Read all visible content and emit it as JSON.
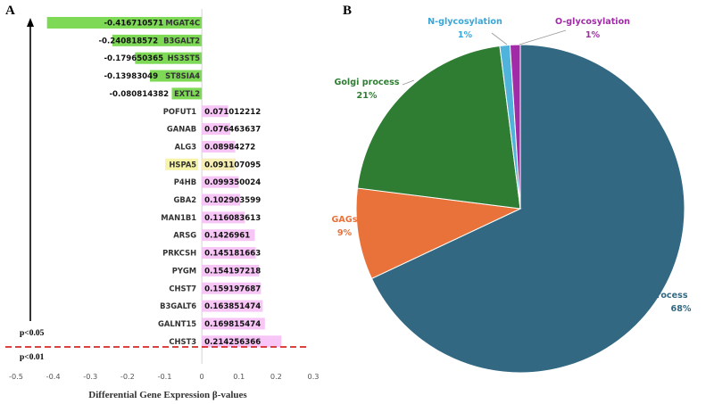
{
  "panel_a_label": "A",
  "panel_b_label": "B",
  "chart_data": [
    {
      "type": "bar",
      "orientation": "horizontal",
      "xlabel": "Differential Gene Expression β-values",
      "xlim": [
        -0.5,
        0.3
      ],
      "ticks": [
        "-0.5",
        "-0.4",
        "-0.3",
        "-0.2",
        "-0.1",
        "0",
        "0.1",
        "0.2",
        "0.3"
      ],
      "tick_values": [
        -0.5,
        -0.4,
        -0.3,
        -0.2,
        -0.1,
        0,
        0.1,
        0.2,
        0.3
      ],
      "p_labels": {
        "upper": "p<0.05",
        "lower": "p<0.01"
      },
      "colors": {
        "negative": "#7ed957",
        "positive": "#f7c6f7",
        "highlight": "#f7f4a8",
        "threshold": "#d62728"
      },
      "bars": [
        {
          "gene": "MGAT4C",
          "value": -0.416710571,
          "label": "-0.416710571",
          "highlight": false
        },
        {
          "gene": "B3GALT2",
          "value": -0.240818572,
          "label": "-0.240818572",
          "highlight": false
        },
        {
          "gene": "HS3ST5",
          "value": -0.179650365,
          "label": "-0.179650365",
          "highlight": false
        },
        {
          "gene": "ST8SIA4",
          "value": -0.13983049,
          "label": "-0.13983049",
          "highlight": false
        },
        {
          "gene": "EXTL2",
          "value": -0.080814382,
          "label": "-0.080814382",
          "highlight": false
        },
        {
          "gene": "POFUT1",
          "value": 0.071012212,
          "label": "0.071012212",
          "highlight": false
        },
        {
          "gene": "GANAB",
          "value": 0.076463637,
          "label": "0.076463637",
          "highlight": false
        },
        {
          "gene": "ALG3",
          "value": 0.08984272,
          "label": "0.08984272",
          "highlight": false
        },
        {
          "gene": "HSPA5",
          "value": 0.091107095,
          "label": "0.091107095",
          "highlight": true
        },
        {
          "gene": "P4HB",
          "value": 0.099350024,
          "label": "0.099350024",
          "highlight": false
        },
        {
          "gene": "GBA2",
          "value": 0.102903599,
          "label": "0.102903599",
          "highlight": false
        },
        {
          "gene": "MAN1B1",
          "value": 0.116083613,
          "label": "0.116083613",
          "highlight": false
        },
        {
          "gene": "ARSG",
          "value": 0.1426961,
          "label": "0.1426961",
          "highlight": false
        },
        {
          "gene": "PRKCSH",
          "value": 0.145181663,
          "label": "0.145181663",
          "highlight": false
        },
        {
          "gene": "PYGM",
          "value": 0.154197218,
          "label": "0.154197218",
          "highlight": false
        },
        {
          "gene": "CHST7",
          "value": 0.159197687,
          "label": "0.159197687",
          "highlight": false
        },
        {
          "gene": "B3GALT6",
          "value": 0.163851474,
          "label": "0.163851474",
          "highlight": false
        },
        {
          "gene": "GALNT15",
          "value": 0.169815474,
          "label": "0.169815474",
          "highlight": false
        },
        {
          "gene": "CHST3",
          "value": 0.214256366,
          "label": "0.214256366",
          "highlight": false
        }
      ]
    },
    {
      "type": "pie",
      "slices": [
        {
          "name": "ER process",
          "value": 68,
          "percent_label": "68%",
          "color": "#326882",
          "label_color": "#326882"
        },
        {
          "name": "GAGs",
          "value": 9,
          "percent_label": "9%",
          "color": "#e8723a",
          "label_color": "#e8723a"
        },
        {
          "name": "Golgi process",
          "value": 21,
          "percent_label": "21%",
          "color": "#2e7d32",
          "label_color": "#2e7d32"
        },
        {
          "name": "N-glycosylation",
          "value": 1,
          "percent_label": "1%",
          "color": "#4fb3dc",
          "label_color": "#3aa6d6"
        },
        {
          "name": "O-glycosylation",
          "value": 1,
          "percent_label": "1%",
          "color": "#a22ca8",
          "label_color": "#a22ca8"
        }
      ]
    }
  ]
}
